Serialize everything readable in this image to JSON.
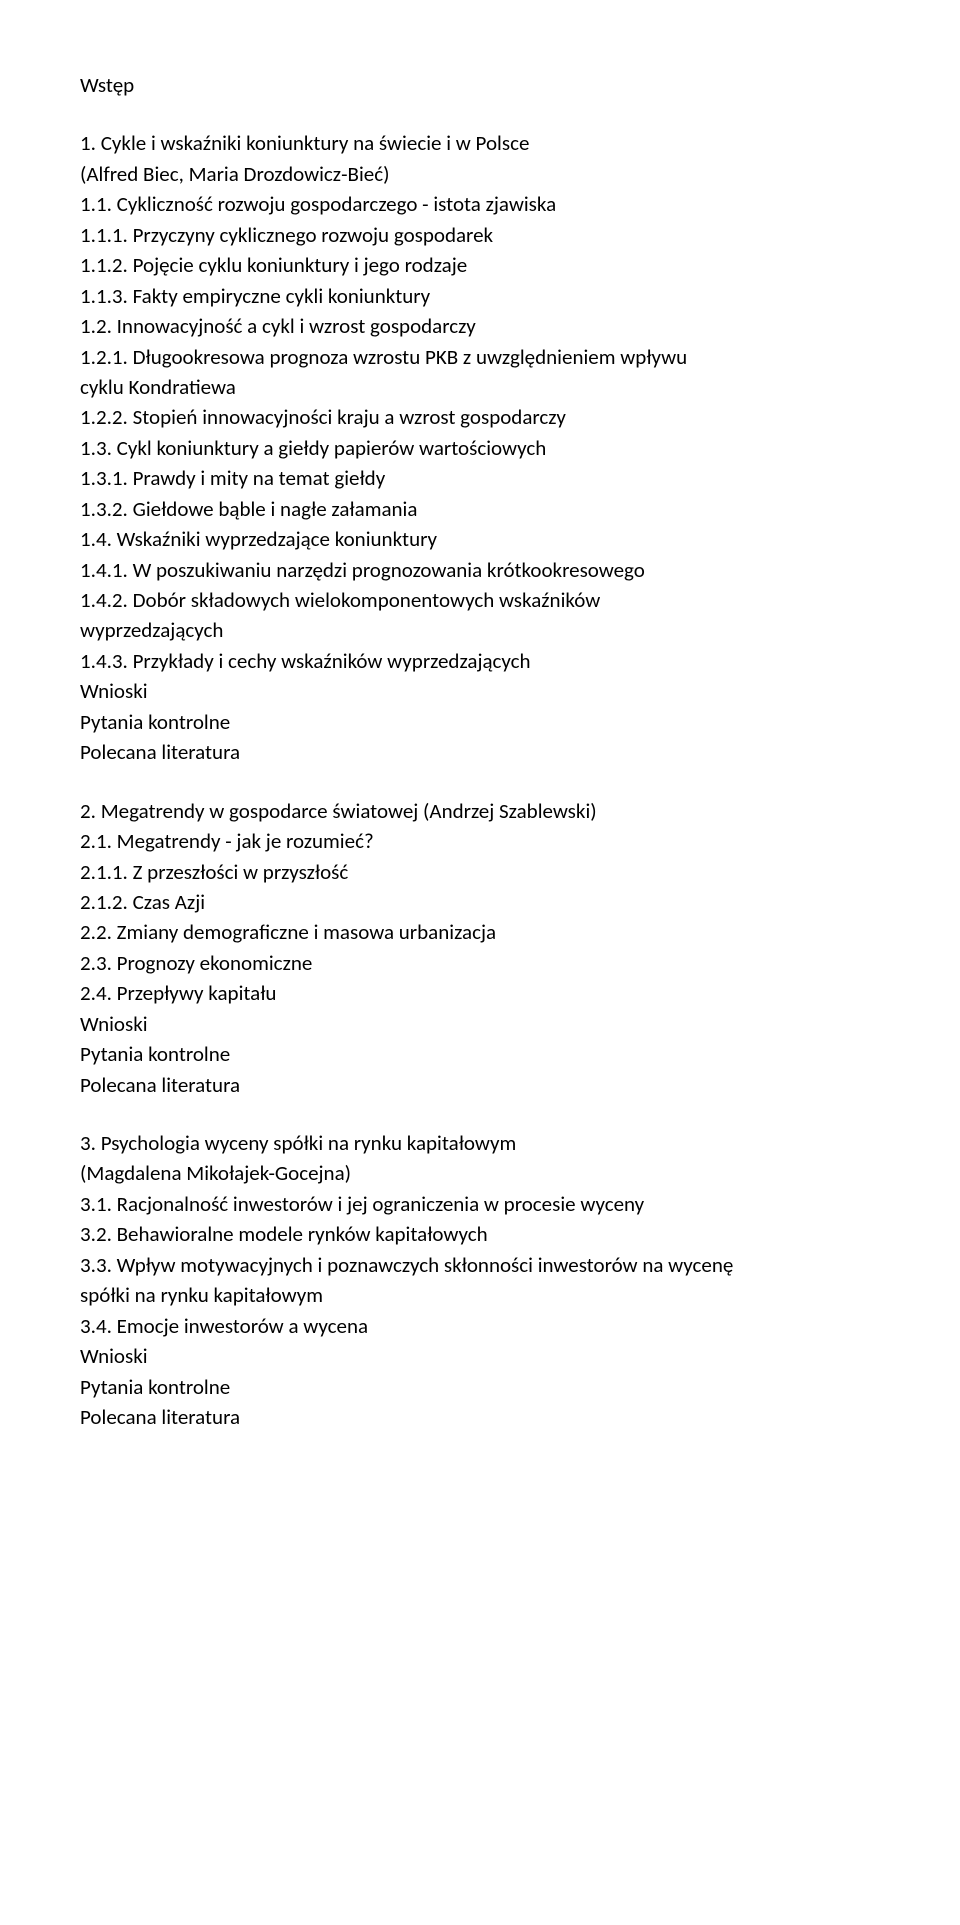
{
  "doc": {
    "intro": "Wstęp",
    "ch1": {
      "title_l1": "1. Cykle i wskaźniki koniunktury na świecie i w Polsce",
      "title_l2": "(Alfred Biec, Maria Drozdowicz-Bieć)",
      "s1_1": "1.1. Cykliczność rozwoju gospodarczego - istota zjawiska",
      "s1_1_1": "1.1.1. Przyczyny cyklicznego rozwoju gospodarek",
      "s1_1_2": "1.1.2. Pojęcie cyklu koniunktury i jego rodzaje",
      "s1_1_3": "1.1.3. Fakty empiryczne cykli koniunktury",
      "s1_2": "1.2. Innowacyjność a cykl i wzrost gospodarczy",
      "s1_2_1_l1": "1.2.1. Długookresowa prognoza wzrostu PKB z uwzględnieniem wpływu",
      "s1_2_1_l2": "cyklu Kondratiewa",
      "s1_2_2": "1.2.2. Stopień innowacyjności kraju a wzrost gospodarczy",
      "s1_3": "1.3. Cykl koniunktury a giełdy papierów wartościowych",
      "s1_3_1": "1.3.1. Prawdy i mity na temat giełdy",
      "s1_3_2": "1.3.2. Giełdowe bąble i nagłe załamania",
      "s1_4": "1.4. Wskaźniki wyprzedzające koniunktury",
      "s1_4_1": "1.4.1. W poszukiwaniu narzędzi prognozowania krótkookresowego",
      "s1_4_2_l1": "1.4.2. Dobór składowych wielokomponentowych wskaźników",
      "s1_4_2_l2": "wyprzedzających",
      "s1_4_3": "1.4.3. Przykłady i cechy wskaźników wyprzedzających",
      "end1": "Wnioski",
      "end2": "Pytania kontrolne",
      "end3": "Polecana literatura"
    },
    "ch2": {
      "title": "2. Megatrendy w gospodarce światowej (Andrzej Szablewski)",
      "s2_1": "2.1. Megatrendy - jak je rozumieć?",
      "s2_1_1": "2.1.1. Z przeszłości w przyszłość",
      "s2_1_2": "2.1.2. Czas Azji",
      "s2_2": "2.2. Zmiany demograficzne i masowa urbanizacja",
      "s2_3": "2.3. Prognozy ekonomiczne",
      "s2_4": "2.4. Przepływy kapitału",
      "end1": "Wnioski",
      "end2": "Pytania kontrolne",
      "end3": "Polecana literatura"
    },
    "ch3": {
      "title_l1": "3. Psychologia wyceny spółki na rynku kapitałowym",
      "title_l2": "(Magdalena Mikołajek-Gocejna)",
      "s3_1": "3.1. Racjonalność inwestorów i jej ograniczenia w procesie wyceny",
      "s3_2": "3.2. Behawioralne modele rynków kapitałowych",
      "s3_3_l1": "3.3. Wpływ motywacyjnych i poznawczych skłonności inwestorów na wycenę",
      "s3_3_l2": "spółki na rynku kapitałowym",
      "s3_4": "3.4. Emocje inwestorów a wycena",
      "end1": "Wnioski",
      "end2": "Pytania kontrolne",
      "end3": "Polecana literatura"
    }
  }
}
